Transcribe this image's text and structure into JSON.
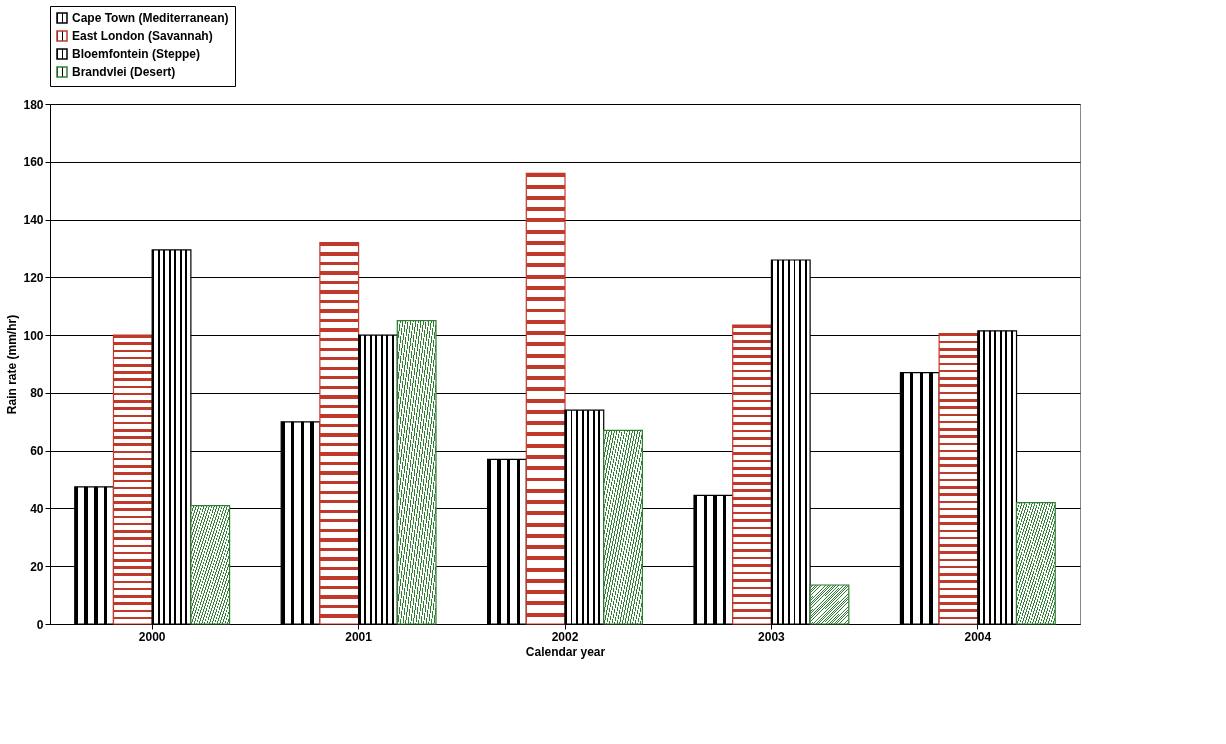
{
  "chart_data": {
    "type": "bar",
    "xlabel": "Calendar year",
    "ylabel": "Rain rate (mm/hr)",
    "categories": [
      "2000",
      "2001",
      "2002",
      "2003",
      "2004"
    ],
    "series": [
      {
        "name": "Cape Town (Mediterranean)",
        "color": "#000000",
        "values": [
          47.5,
          70,
          57,
          44.5,
          87
        ]
      },
      {
        "name": "East London (Savannah)",
        "color": "#c0392b",
        "values": [
          100,
          132,
          156,
          103.5,
          100.5
        ]
      },
      {
        "name": "Bloemfontein (Steppe)",
        "color": "#000000",
        "values": [
          129.5,
          100,
          74,
          126,
          101.5
        ]
      },
      {
        "name": "Brandvlei (Desert)",
        "color": "#2e7d32",
        "values": [
          41,
          105,
          67,
          13.5,
          42
        ]
      }
    ],
    "ylim": [
      0,
      180
    ],
    "yticks": [
      0,
      20,
      40,
      60,
      80,
      100,
      120,
      140,
      160,
      180
    ],
    "grid": "y",
    "legend": "top"
  }
}
